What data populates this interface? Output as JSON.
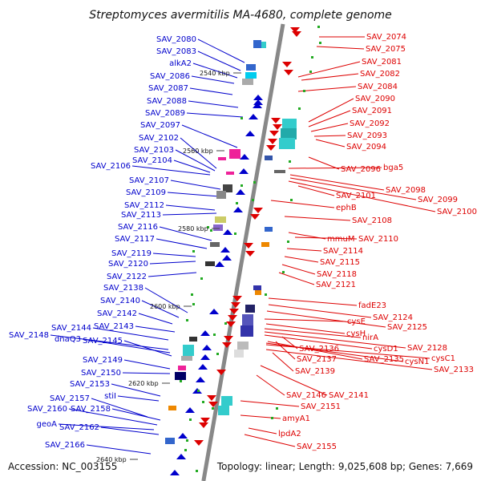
{
  "title": "Streptomyces avermitilis MA-4680, complete genome",
  "footer": {
    "accession": "Accession: NC_003155",
    "stats": "Topology: linear; Length: 9,025,608 bp; Genes: 7,669"
  },
  "colors": {
    "plus_strand": "#0000cc",
    "minus_strand": "#dd0000",
    "backbone": "#888888"
  },
  "scale_marks": [
    "2540 kbp",
    "2560 kbp",
    "2580 kbp",
    "2600 kbp",
    "2620 kbp",
    "2640 kbp"
  ],
  "left_labels": [
    "SAV_2080",
    "SAV_2083",
    "alkA2",
    "SAV_2086",
    "SAV_2087",
    "SAV_2088",
    "SAV_2089",
    "SAV_2097",
    "SAV_2102",
    "SAV_2103",
    "SAV_2104",
    "SAV_2106",
    "SAV_2107",
    "SAV_2109",
    "SAV_2112",
    "SAV_2113",
    "SAV_2116",
    "SAV_2117",
    "SAV_2119",
    "SAV_2120",
    "SAV_2122",
    "SAV_2138",
    "SAV_2140",
    "SAV_2142",
    "SAV_2143",
    "SAV_2144",
    "SAV_2148",
    "dnaQ3",
    "SAV_2145",
    "SAV_2149",
    "SAV_2150",
    "SAV_2153",
    "stiI",
    "SAV_2157",
    "SAV_2158",
    "SAV_2160",
    "geoA",
    "SAV_2162",
    "SAV_2166"
  ],
  "right_labels": [
    "SAV_2074",
    "SAV_2075",
    "SAV_2081",
    "SAV_2082",
    "SAV_2084",
    "SAV_2090",
    "SAV_2091",
    "SAV_2092",
    "SAV_2093",
    "SAV_2094",
    "SAV_2096",
    "bga5",
    "SAV_2098",
    "SAV_2099",
    "SAV_2100",
    "SAV_2101",
    "ephB",
    "SAV_2108",
    "mmuM",
    "SAV_2110",
    "SAV_2114",
    "SAV_2115",
    "SAV_2118",
    "SAV_2121",
    "fadE23",
    "SAV_2124",
    "SAV_2125",
    "cysE",
    "cysH",
    "nirA",
    "SAV_2128",
    "cysD1",
    "SAV_2136",
    "SAV_2137",
    "SAV_2135",
    "cysN1",
    "cysC1",
    "SAV_2139",
    "SAV_2133",
    "SAV_2146",
    "SAV_2141",
    "SAV_2151",
    "amyA1",
    "lpdA2",
    "SAV_2155"
  ]
}
